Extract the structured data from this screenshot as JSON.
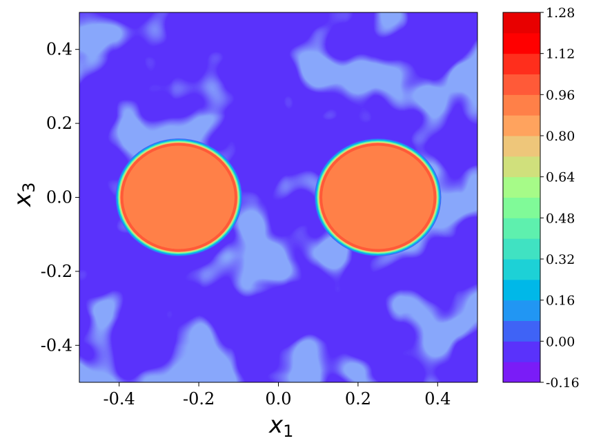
{
  "chart_data": {
    "type": "heatmap",
    "title": "",
    "xlabel": "x",
    "xlabel_sub": "1",
    "ylabel": "x",
    "ylabel_sub": "3",
    "xlim": [
      -0.5,
      0.5
    ],
    "ylim": [
      -0.5,
      0.5
    ],
    "x_ticks": [
      -0.4,
      -0.2,
      0.0,
      0.2,
      0.4
    ],
    "x_tick_labels": [
      "-0.4",
      "-0.2",
      "0.0",
      "0.2",
      "0.4"
    ],
    "y_ticks": [
      0.4,
      0.2,
      0.0,
      -0.2,
      -0.4
    ],
    "y_tick_labels": [
      "0.4",
      "0.2",
      "0.0",
      "-0.2",
      "-0.4"
    ],
    "grid": false,
    "background_level": 0.0,
    "features": [
      {
        "shape": "disk",
        "center": [
          -0.25,
          0.0
        ],
        "radius": 0.15,
        "value": 0.96
      },
      {
        "shape": "disk",
        "center": [
          0.25,
          0.0
        ],
        "radius": 0.15,
        "value": 0.96
      }
    ],
    "colorbar": {
      "min": -0.16,
      "max": 1.28,
      "levels": [
        -0.16,
        -0.08,
        0.0,
        0.08,
        0.16,
        0.24,
        0.32,
        0.4,
        0.48,
        0.56,
        0.64,
        0.72,
        0.8,
        0.88,
        0.96,
        1.04,
        1.12,
        1.2,
        1.28
      ],
      "tick_labels": [
        "1.28",
        "1.12",
        "0.96",
        "0.80",
        "0.64",
        "0.48",
        "0.32",
        "0.16",
        "0.00",
        "-0.16"
      ],
      "colors": [
        "#7a1cf7",
        "#5a32fb",
        "#3f63f6",
        "#2196f3",
        "#00b8e8",
        "#1dd1d6",
        "#40e2c2",
        "#5ef0ae",
        "#80fa98",
        "#a6fb88",
        "#d0e07c",
        "#eec67a",
        "#ffa35e",
        "#ff8048",
        "#ff5a38",
        "#ff2e1c",
        "#ff0000",
        "#e80000"
      ]
    }
  }
}
